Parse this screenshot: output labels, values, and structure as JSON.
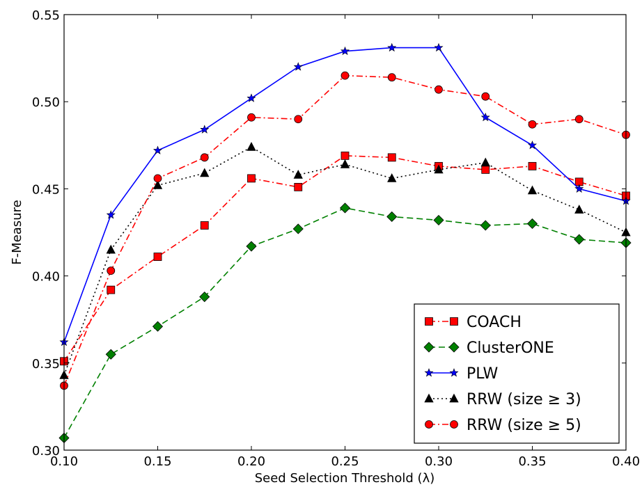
{
  "chart_data": {
    "type": "line",
    "xlabel": "Seed Selection Threshold (λ)",
    "ylabel": "F-Measure",
    "xlim": [
      0.1,
      0.4
    ],
    "ylim": [
      0.3,
      0.55
    ],
    "xticks": [
      "0.10",
      "0.15",
      "0.20",
      "0.25",
      "0.30",
      "0.35",
      "0.40"
    ],
    "yticks": [
      "0.30",
      "0.35",
      "0.40",
      "0.45",
      "0.50",
      "0.55"
    ],
    "grid": false,
    "legend_position": "lower-right",
    "x": [
      0.1,
      0.125,
      0.15,
      0.175,
      0.2,
      0.225,
      0.25,
      0.275,
      0.3,
      0.325,
      0.35,
      0.375,
      0.4
    ],
    "series": [
      {
        "name": "COACH",
        "color": "#ff0000",
        "marker": "square",
        "line": "dash-dot",
        "values": [
          0.351,
          0.392,
          0.411,
          0.429,
          0.456,
          0.451,
          0.469,
          0.468,
          0.463,
          0.461,
          0.463,
          0.454,
          0.446
        ]
      },
      {
        "name": "ClusterONE",
        "color": "#008000",
        "marker": "diamond",
        "line": "dashed",
        "values": [
          0.307,
          0.355,
          0.371,
          0.388,
          0.417,
          0.427,
          0.439,
          0.434,
          0.432,
          0.429,
          0.43,
          0.421,
          0.419
        ]
      },
      {
        "name": "PLW",
        "color": "#0000ff",
        "marker": "star",
        "line": "solid",
        "values": [
          0.362,
          0.435,
          0.472,
          0.484,
          0.502,
          0.52,
          0.529,
          0.531,
          0.531,
          0.491,
          0.475,
          0.45,
          0.443
        ]
      },
      {
        "name": "RRW (size ≥ 3)",
        "color": "#000000",
        "marker": "triangle",
        "line": "dotted",
        "values": [
          0.343,
          0.415,
          0.452,
          0.459,
          0.474,
          0.458,
          0.464,
          0.456,
          0.461,
          0.465,
          0.449,
          0.438,
          0.425
        ]
      },
      {
        "name": "RRW (size ≥ 5)",
        "color": "#ff0000",
        "marker": "circle",
        "line": "dash-dot",
        "values": [
          0.337,
          0.403,
          0.456,
          0.468,
          0.491,
          0.49,
          0.515,
          0.514,
          0.507,
          0.503,
          0.487,
          0.49,
          0.481
        ]
      }
    ]
  }
}
